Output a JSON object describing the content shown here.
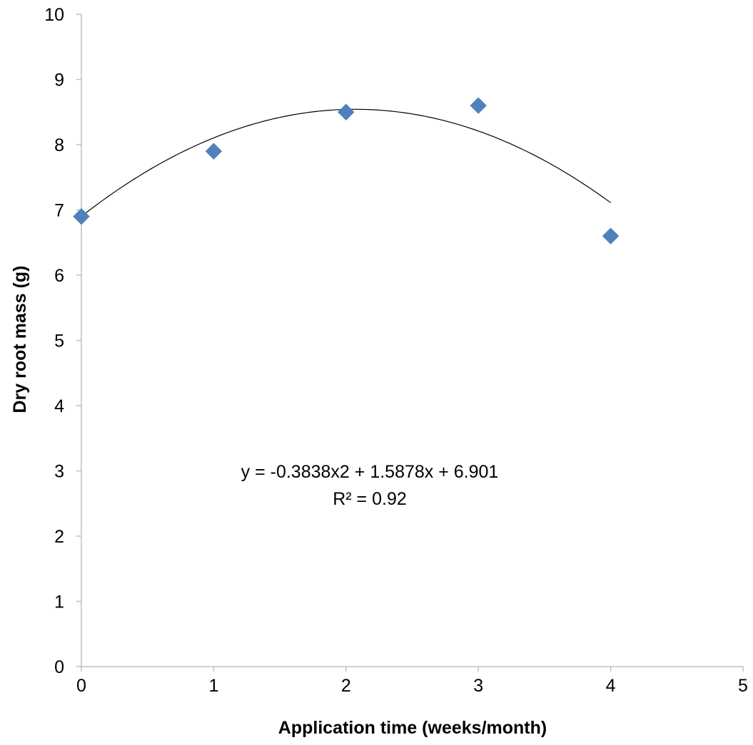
{
  "chart_data": {
    "type": "scatter",
    "title": "",
    "xlabel": "Application time (weeks/month)",
    "ylabel": "Dry root mass (g)",
    "xlim": [
      0,
      5
    ],
    "ylim": [
      0,
      10
    ],
    "xticks": [
      0,
      1,
      2,
      3,
      4,
      5
    ],
    "yticks": [
      0,
      1,
      2,
      3,
      4,
      5,
      6,
      7,
      8,
      9,
      10
    ],
    "grid": false,
    "legend": "none",
    "series": [
      {
        "marker": "diamond",
        "color": "#4f81bd",
        "x": [
          0,
          1,
          2,
          3,
          4
        ],
        "y": [
          6.9,
          7.9,
          8.5,
          8.6,
          6.6
        ]
      }
    ],
    "trendline": {
      "type": "polynomial",
      "order": 2,
      "coefficients": [
        -0.3838,
        1.5878,
        6.901
      ],
      "x_range": [
        0,
        4
      ],
      "color": "#000000"
    },
    "annotations": {
      "equation": "y = -0.3838x2 + 1.5878x + 6.901",
      "r_squared": "R² = 0.92"
    }
  }
}
